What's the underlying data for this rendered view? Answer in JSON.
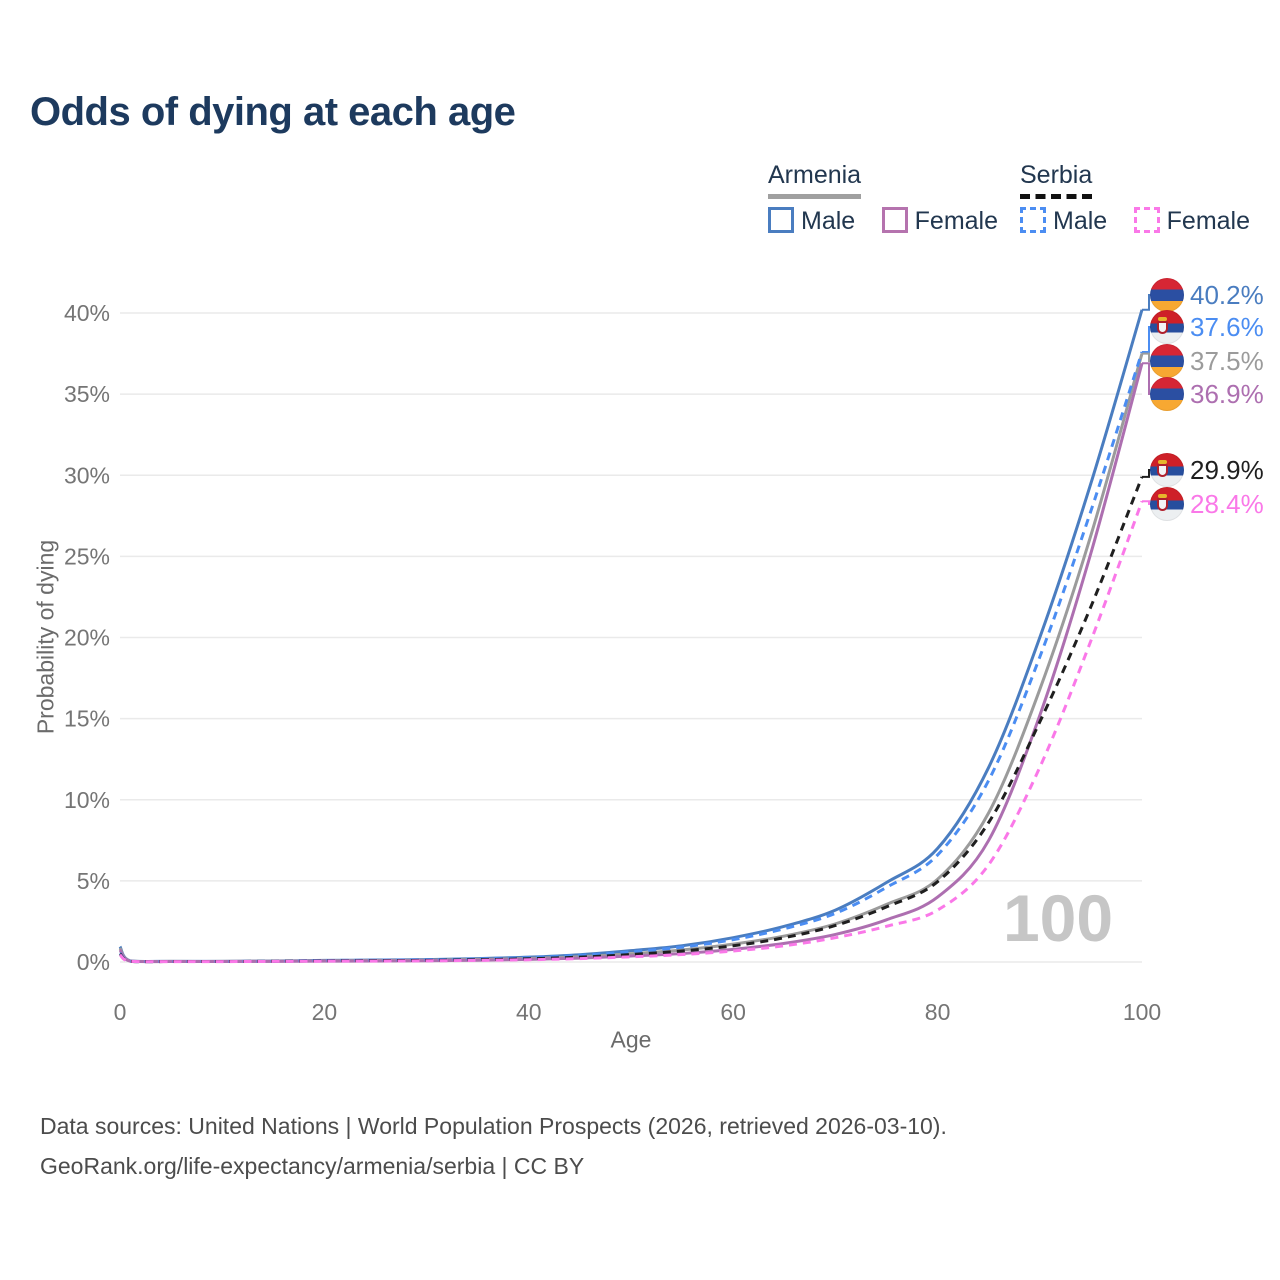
{
  "chart_data": {
    "type": "line",
    "title": "Odds of dying at each age",
    "xlabel": "Age",
    "ylabel": "Probability of dying",
    "xlim": [
      0,
      100
    ],
    "ylim": [
      0,
      40
    ],
    "xticks": [
      0,
      20,
      40,
      60,
      80,
      100
    ],
    "yticks": [
      0,
      5,
      10,
      15,
      20,
      25,
      30,
      35,
      40
    ],
    "grid": "horizontal",
    "legend_position": "top-right",
    "watermark": "100",
    "x": [
      0,
      1,
      5,
      10,
      15,
      20,
      25,
      30,
      35,
      40,
      45,
      50,
      55,
      60,
      65,
      70,
      75,
      80,
      85,
      90,
      95,
      100
    ],
    "series": [
      {
        "name": "Armenia Male",
        "country": "Armenia",
        "sex": "Male",
        "color": "#4a7dc0",
        "dash": false,
        "flag": "armenia",
        "end_label": "40.2%",
        "end_value": 40.2,
        "values": [
          0.95,
          0.07,
          0.04,
          0.04,
          0.06,
          0.1,
          0.12,
          0.15,
          0.21,
          0.3,
          0.45,
          0.7,
          1.0,
          1.5,
          2.2,
          3.2,
          4.9,
          7.0,
          12.0,
          20.0,
          29.5,
          40.2
        ]
      },
      {
        "name": "Armenia Both sexes",
        "country": "Armenia",
        "sex": "Both",
        "color": "#9b9b9b",
        "dash": false,
        "flag": "armenia",
        "end_label": "37.5%",
        "end_value": 37.5,
        "values": [
          0.85,
          0.06,
          0.035,
          0.035,
          0.05,
          0.08,
          0.09,
          0.11,
          0.16,
          0.22,
          0.33,
          0.51,
          0.74,
          1.1,
          1.6,
          2.35,
          3.55,
          5.1,
          9.2,
          16.8,
          26.3,
          37.5
        ]
      },
      {
        "name": "Armenia Female",
        "country": "Armenia",
        "sex": "Female",
        "color": "#ad6fb0",
        "dash": false,
        "flag": "armenia",
        "end_label": "36.9%",
        "end_value": 36.9,
        "values": [
          0.75,
          0.05,
          0.03,
          0.03,
          0.04,
          0.055,
          0.06,
          0.08,
          0.11,
          0.16,
          0.24,
          0.37,
          0.52,
          0.78,
          1.15,
          1.7,
          2.6,
          4.0,
          7.5,
          15.2,
          25.2,
          36.9
        ]
      },
      {
        "name": "Serbia Male",
        "country": "Serbia",
        "sex": "Male",
        "color": "#4b8df2",
        "dash": true,
        "flag": "serbia",
        "end_label": "37.6%",
        "end_value": 37.6,
        "values": [
          0.55,
          0.05,
          0.03,
          0.03,
          0.05,
          0.09,
          0.11,
          0.14,
          0.19,
          0.27,
          0.41,
          0.63,
          0.92,
          1.38,
          2.05,
          3.0,
          4.6,
          6.6,
          11.2,
          18.8,
          27.8,
          37.6
        ]
      },
      {
        "name": "Serbia Both sexes",
        "country": "Serbia",
        "sex": "Both",
        "color": "#1f1f1f",
        "dash": true,
        "flag": "serbia",
        "end_label": "29.9%",
        "end_value": 29.9,
        "values": [
          0.5,
          0.045,
          0.03,
          0.03,
          0.045,
          0.07,
          0.085,
          0.1,
          0.14,
          0.2,
          0.3,
          0.46,
          0.68,
          1.0,
          1.5,
          2.25,
          3.4,
          4.95,
          8.6,
          14.8,
          21.9,
          29.9
        ]
      },
      {
        "name": "Serbia Female",
        "country": "Serbia",
        "sex": "Female",
        "color": "#fa78e8",
        "dash": true,
        "flag": "serbia",
        "end_label": "28.4%",
        "end_value": 28.4,
        "values": [
          0.45,
          0.04,
          0.025,
          0.025,
          0.035,
          0.05,
          0.055,
          0.07,
          0.1,
          0.14,
          0.21,
          0.32,
          0.46,
          0.68,
          1.0,
          1.5,
          2.2,
          3.2,
          6.0,
          12.0,
          19.8,
          28.4
        ]
      }
    ]
  },
  "legend": {
    "groups": [
      {
        "name": "Armenia",
        "line_style": "solid",
        "underline_color": "#a0a0a0",
        "items": [
          {
            "label": "Male",
            "color": "#4a7dc0"
          },
          {
            "label": "Female",
            "color": "#b573ae"
          }
        ]
      },
      {
        "name": "Serbia",
        "line_style": "dashed",
        "underline_color": "#111111",
        "items": [
          {
            "label": "Male",
            "color": "#4b8df2"
          },
          {
            "label": "Female",
            "color": "#fa78e8"
          }
        ]
      }
    ]
  },
  "footer": {
    "line1": "Data sources: United Nations | World Population Prospects (2026, retrieved 2026-03-10).",
    "line2": "GeoRank.org/life-expectancy/armenia/serbia | CC BY"
  }
}
